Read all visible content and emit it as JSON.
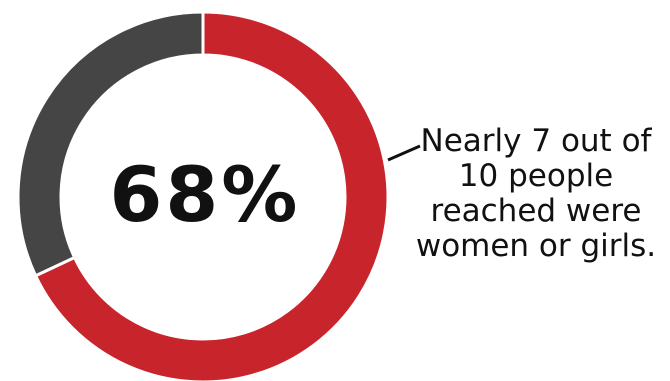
{
  "chart_data": {
    "type": "pie",
    "variant": "donut",
    "center_label": "68%",
    "slices": [
      {
        "value": 68,
        "color": "#c8242c"
      },
      {
        "value": 32,
        "color": "#454545"
      }
    ],
    "annotation": {
      "lines": [
        "Nearly 7 out of",
        "10 people",
        "reached were",
        "women or girls."
      ]
    },
    "colors": {
      "text": "#111111",
      "leader_line": "#111111",
      "gap": "#ffffff"
    }
  }
}
